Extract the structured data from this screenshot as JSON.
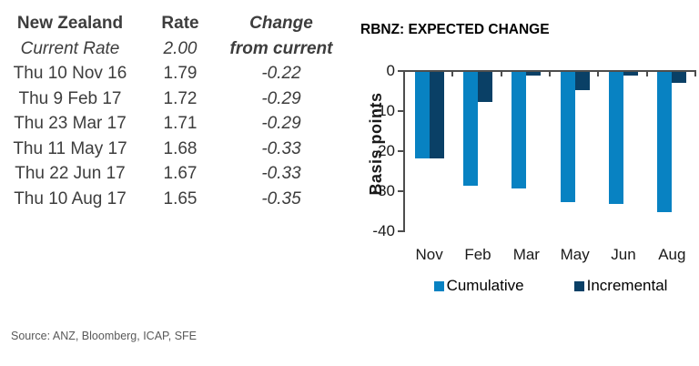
{
  "table": {
    "headers": [
      "New Zealand",
      "Rate",
      "Change"
    ],
    "subrow": {
      "label": "Current Rate",
      "rate": "2.00",
      "line2": "from current"
    },
    "rows": [
      {
        "date": "Thu 10 Nov 16",
        "rate": "1.79",
        "change": "-0.22"
      },
      {
        "date": "Thu 9 Feb 17",
        "rate": "1.72",
        "change": "-0.29"
      },
      {
        "date": "Thu 23 Mar 17",
        "rate": "1.71",
        "change": "-0.29"
      },
      {
        "date": "Thu 11 May 17",
        "rate": "1.68",
        "change": "-0.33"
      },
      {
        "date": "Thu 22 Jun 17",
        "rate": "1.67",
        "change": "-0.33"
      },
      {
        "date": "Thu 10 Aug 17",
        "rate": "1.65",
        "change": "-0.35"
      }
    ]
  },
  "chart_data": {
    "type": "bar",
    "title": "RBNZ: EXPECTED CHANGE",
    "ylabel": "Basis points",
    "xlabel": "",
    "categories": [
      "Nov",
      "Feb",
      "Mar",
      "May",
      "Jun",
      "Aug"
    ],
    "series": [
      {
        "name": "Cumulative",
        "color": "#0882c2",
        "values": [
          -21.5,
          -28.5,
          -29,
          -32.5,
          -33,
          -35
        ]
      },
      {
        "name": "Incremental",
        "color": "#0a4066",
        "values": [
          -21.5,
          -7.5,
          -1,
          -4.5,
          -1,
          -2.8
        ]
      }
    ],
    "ylim": [
      -40,
      0
    ],
    "yticks": [
      0,
      -10,
      -20,
      -30,
      -40
    ],
    "grid": false,
    "legend_position": "bottom"
  },
  "source": "Source: ANZ, Bloomberg, ICAP, SFE",
  "colors": {
    "cumulative": "#0882c2",
    "incremental": "#0a4066",
    "axis": "#4d4d4d",
    "table_text": "#3d3d3d",
    "source_text": "#595959"
  }
}
